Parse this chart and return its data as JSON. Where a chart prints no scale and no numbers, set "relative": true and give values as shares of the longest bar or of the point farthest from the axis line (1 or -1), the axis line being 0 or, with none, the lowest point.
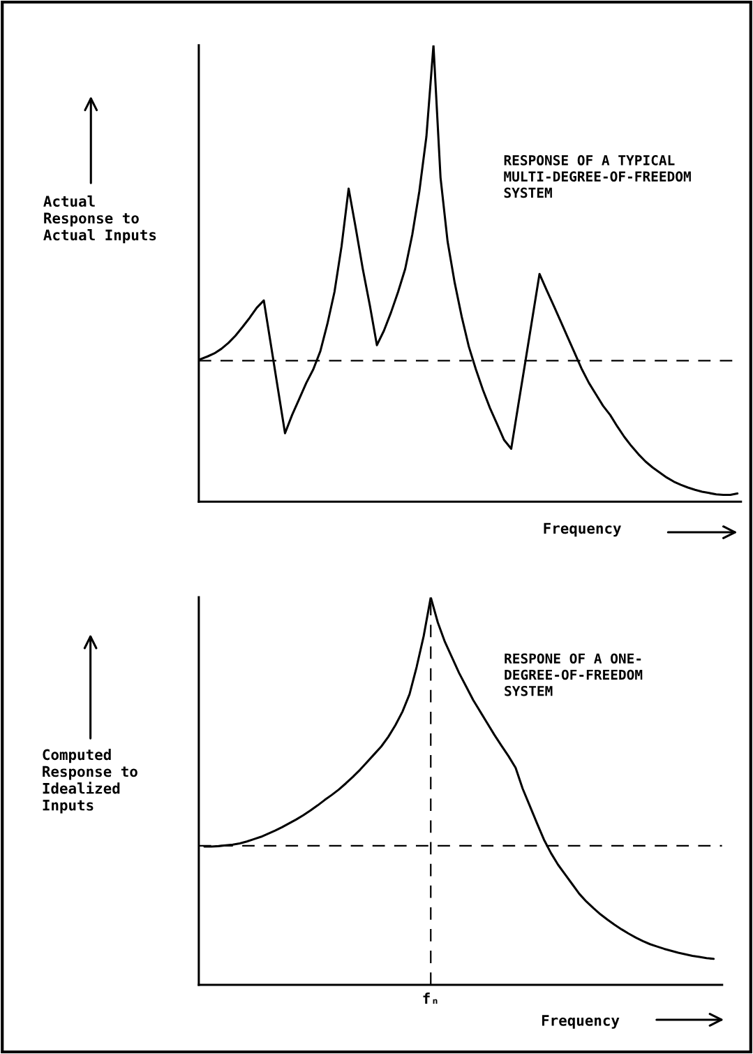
{
  "chart_data": [
    {
      "type": "line",
      "relative": true,
      "title": "RESPONSE OF A TYPICAL\nMULTI-DEGREE-OF-FREEDOM\nSYSTEM",
      "ylabel": "Actual\nResponse to\nActual Inputs",
      "xlabel": "Frequency",
      "categories": [
        null,
        null,
        null,
        null,
        null,
        null,
        null,
        null,
        null,
        null,
        null,
        null,
        null,
        null,
        null,
        null,
        null,
        null,
        null,
        null,
        null,
        null,
        null,
        null,
        null,
        null,
        null,
        null,
        null,
        null,
        null,
        null,
        null,
        null,
        null,
        null,
        null,
        null,
        null,
        null,
        null,
        null,
        null,
        null,
        null,
        null,
        null,
        null,
        null,
        null,
        null,
        null,
        null,
        null,
        null,
        null,
        null,
        null,
        null,
        null,
        null,
        null,
        null,
        null,
        null,
        null,
        null,
        null,
        null,
        null,
        null,
        null,
        null,
        null,
        null,
        null,
        null
      ],
      "series": [
        {
          "color": "#000000",
          "values": [
            0.312,
            0.318,
            0.325,
            0.335,
            0.348,
            0.364,
            0.383,
            0.403,
            0.425,
            0.441,
            0.344,
            0.247,
            0.15,
            0.19,
            0.225,
            0.26,
            0.29,
            0.33,
            0.39,
            0.46,
            0.56,
            0.686,
            0.6,
            0.51,
            0.43,
            0.343,
            0.375,
            0.415,
            0.46,
            0.51,
            0.585,
            0.68,
            0.8,
            1.0,
            0.71,
            0.57,
            0.48,
            0.405,
            0.34,
            0.29,
            0.245,
            0.205,
            0.17,
            0.135,
            0.116,
            0.212,
            0.307,
            0.403,
            0.499,
            0.464,
            0.43,
            0.395,
            0.36,
            0.325,
            0.29,
            0.26,
            0.235,
            0.21,
            0.19,
            0.165,
            0.142,
            0.122,
            0.104,
            0.088,
            0.075,
            0.064,
            0.053,
            0.044,
            0.037,
            0.031,
            0.026,
            0.022,
            0.019,
            0.016,
            0.015,
            0.015,
            0.018
          ]
        }
      ],
      "ref_lines": [
        {
          "axis": "y",
          "value": 0.309,
          "color": "#000000",
          "line_style": "dashed"
        }
      ]
    },
    {
      "type": "line",
      "relative": true,
      "annotations": [
        "fₙ"
      ],
      "title": "RESPONE OF A ONE-\nDEGREE-OF-FREEDOM\nSYSTEM",
      "ylabel": "Computed\nResponse to\nIdealized\nInputs",
      "xlabel": "Frequency",
      "categories": [
        null,
        null,
        null,
        null,
        null,
        null,
        null,
        null,
        null,
        null,
        null,
        null,
        null,
        null,
        null,
        null,
        null,
        null,
        null,
        null,
        null,
        null,
        null,
        null,
        null,
        null,
        null,
        null,
        null,
        null,
        null,
        null,
        null,
        null,
        null,
        null,
        null,
        null,
        null,
        null,
        null,
        null,
        null,
        null,
        null,
        null,
        null,
        null,
        null,
        null,
        null,
        null,
        null,
        null,
        null,
        null,
        null,
        null,
        null,
        null,
        null,
        null,
        null,
        null,
        null,
        null,
        null,
        null,
        null,
        null,
        null,
        null,
        null
      ],
      "series": [
        {
          "color": "#000000",
          "values": [
            0.357,
            0.357,
            0.358,
            0.36,
            0.362,
            0.365,
            0.37,
            0.376,
            0.382,
            0.39,
            0.398,
            0.407,
            0.417,
            0.427,
            0.438,
            0.45,
            0.463,
            0.477,
            0.49,
            0.504,
            0.52,
            0.537,
            0.555,
            0.575,
            0.595,
            0.615,
            0.64,
            0.67,
            0.705,
            0.75,
            0.82,
            0.9,
            1.0,
            0.935,
            0.885,
            0.845,
            0.805,
            0.77,
            0.735,
            0.705,
            0.675,
            0.645,
            0.617,
            0.59,
            0.56,
            0.506,
            0.462,
            0.418,
            0.375,
            0.34,
            0.31,
            0.285,
            0.26,
            0.235,
            0.215,
            0.198,
            0.182,
            0.168,
            0.155,
            0.143,
            0.132,
            0.122,
            0.113,
            0.105,
            0.099,
            0.093,
            0.088,
            0.083,
            0.079,
            0.075,
            0.072,
            0.069,
            0.067
          ]
        }
      ],
      "ref_lines": [
        {
          "axis": "y",
          "value": 0.359,
          "color": "#000000",
          "line_style": "dashed"
        }
      ]
    }
  ]
}
